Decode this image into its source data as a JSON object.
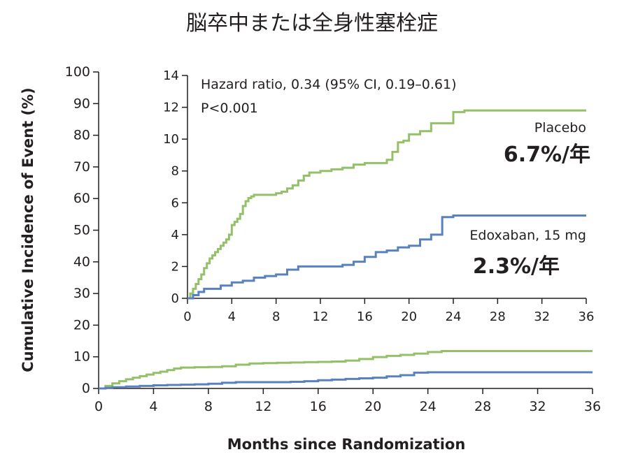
{
  "title": "脳卒中または全身性塞栓症",
  "chart_data": [
    {
      "type": "line",
      "xlabel": "Months since Randomization",
      "ylabel": "Cumulative Incidence of Event (%)",
      "xlim": [
        0,
        36
      ],
      "ylim": [
        0,
        100
      ],
      "xticks": [
        0,
        4,
        8,
        12,
        16,
        20,
        24,
        28,
        32,
        36
      ],
      "yticks": [
        0,
        10,
        20,
        30,
        40,
        50,
        60,
        70,
        80,
        90,
        100
      ],
      "grid": false,
      "colors": {
        "placebo": "#94c06a",
        "edoxaban": "#5a81bf"
      },
      "series": [
        {
          "name": "Placebo",
          "x": [
            0,
            0.5,
            1,
            1.5,
            2,
            2.5,
            3,
            3.5,
            4,
            4.5,
            5,
            5.5,
            6,
            7,
            8,
            9,
            10,
            11,
            12,
            13,
            14,
            15,
            16,
            17,
            18,
            19,
            20,
            21,
            22,
            23,
            24,
            25,
            26,
            27,
            28,
            29,
            30,
            31,
            32,
            33,
            34,
            35,
            36
          ],
          "values": [
            0,
            0.8,
            1.6,
            2.3,
            2.9,
            3.4,
            3.9,
            4.4,
            4.9,
            5.3,
            5.8,
            6.3,
            6.6,
            6.7,
            6.8,
            7.0,
            7.5,
            7.9,
            8.0,
            8.1,
            8.2,
            8.3,
            8.4,
            8.5,
            8.8,
            9.3,
            9.9,
            10.3,
            10.6,
            11.0,
            11.5,
            11.8,
            11.8,
            11.8,
            11.8,
            11.8,
            11.8,
            11.8,
            11.8,
            11.8,
            11.8,
            11.8,
            11.8
          ]
        },
        {
          "name": "Edoxaban, 15 mg",
          "x": [
            0,
            0.5,
            1,
            2,
            3,
            4,
            5,
            6,
            7,
            8,
            9,
            10,
            11,
            12,
            13,
            14,
            15,
            16,
            17,
            18,
            19,
            20,
            21,
            22,
            23,
            24,
            25,
            26,
            27,
            28,
            29,
            30,
            31,
            32,
            33,
            34,
            35,
            36
          ],
          "values": [
            0,
            0.2,
            0.4,
            0.6,
            0.8,
            1.0,
            1.1,
            1.2,
            1.3,
            1.5,
            1.8,
            2.0,
            2.0,
            2.0,
            2.0,
            2.1,
            2.3,
            2.6,
            2.8,
            3.0,
            3.2,
            3.4,
            3.8,
            4.2,
            5.0,
            5.1,
            5.1,
            5.1,
            5.1,
            5.1,
            5.1,
            5.1,
            5.1,
            5.1,
            5.1,
            5.1,
            5.1,
            5.1
          ]
        }
      ]
    },
    {
      "type": "line",
      "xlim": [
        0,
        36
      ],
      "ylim": [
        0,
        14
      ],
      "xticks": [
        0,
        4,
        8,
        12,
        16,
        20,
        24,
        28,
        32,
        36
      ],
      "yticks": [
        0,
        2,
        4,
        6,
        8,
        10,
        12,
        14
      ],
      "grid": false,
      "annotations": [
        "Hazard ratio, 0.34 (95% CI, 0.19–0.61)",
        "P<0.001"
      ],
      "series": [
        {
          "name": "Placebo",
          "rate_label": "6.7%/年",
          "x": [
            0,
            0.25,
            0.5,
            0.75,
            1,
            1.25,
            1.5,
            1.75,
            2,
            2.25,
            2.5,
            2.75,
            3,
            3.25,
            3.5,
            3.75,
            4,
            4.25,
            4.5,
            4.75,
            5,
            5.25,
            5.5,
            5.75,
            6,
            7,
            8,
            8.5,
            9,
            9.5,
            10,
            10.5,
            11,
            12,
            13,
            14,
            15,
            16,
            17,
            18,
            18.5,
            19,
            19.5,
            20,
            21,
            22,
            23,
            24,
            25,
            26,
            27,
            28,
            29,
            30,
            31,
            32,
            33,
            34,
            35,
            36
          ],
          "values": [
            0,
            0.3,
            0.6,
            0.9,
            1.2,
            1.5,
            1.9,
            2.2,
            2.5,
            2.7,
            2.9,
            3.1,
            3.3,
            3.5,
            3.7,
            4.0,
            4.6,
            4.8,
            5.0,
            5.3,
            5.8,
            6.1,
            6.3,
            6.4,
            6.5,
            6.5,
            6.6,
            6.7,
            6.9,
            7.1,
            7.4,
            7.7,
            7.9,
            8.0,
            8.1,
            8.2,
            8.4,
            8.5,
            8.5,
            8.7,
            9.2,
            9.8,
            9.9,
            10.3,
            10.5,
            11.0,
            11.0,
            11.7,
            11.8,
            11.8,
            11.8,
            11.8,
            11.8,
            11.8,
            11.8,
            11.8,
            11.8,
            11.8,
            11.8,
            11.8
          ]
        },
        {
          "name": "Edoxaban, 15 mg",
          "rate_label": "2.3%/年",
          "x": [
            0,
            0.5,
            1,
            1.5,
            2,
            3,
            4,
            5,
            6,
            7,
            8,
            9,
            10,
            11,
            12,
            13,
            14,
            15,
            16,
            17,
            18,
            19,
            20,
            21,
            22,
            23,
            24,
            25,
            26,
            27,
            28,
            29,
            30,
            31,
            32,
            33,
            34,
            35,
            36
          ],
          "values": [
            0,
            0.2,
            0.4,
            0.6,
            0.6,
            0.8,
            1.0,
            1.1,
            1.3,
            1.4,
            1.5,
            1.8,
            2.0,
            2.0,
            2.0,
            2.0,
            2.1,
            2.3,
            2.6,
            2.9,
            3.0,
            3.2,
            3.3,
            3.7,
            4.0,
            5.1,
            5.2,
            5.2,
            5.2,
            5.2,
            5.2,
            5.2,
            5.2,
            5.2,
            5.2,
            5.2,
            5.2,
            5.2,
            5.2
          ]
        }
      ]
    }
  ]
}
